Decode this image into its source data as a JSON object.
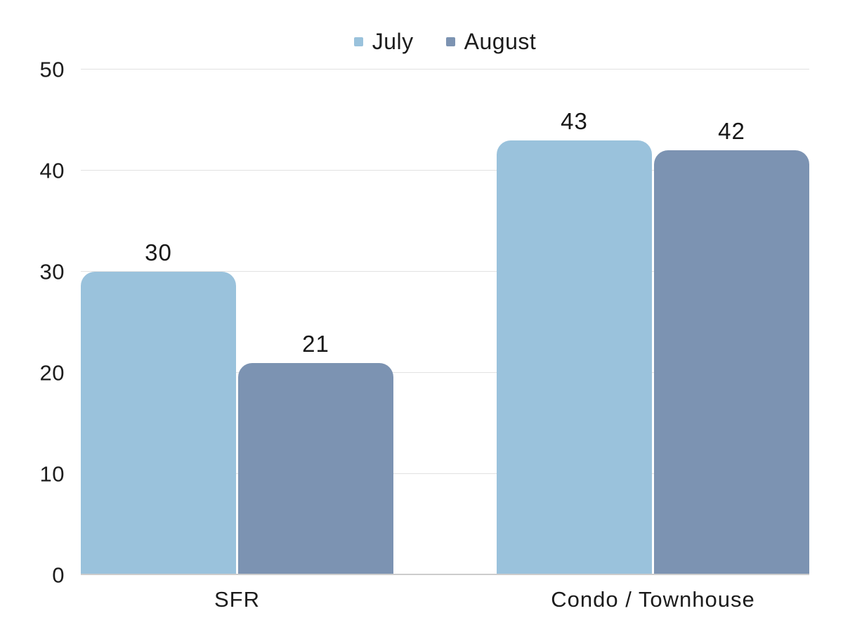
{
  "chart_data": {
    "type": "bar",
    "title": "",
    "categories": [
      "SFR",
      "Condo / Townhouse"
    ],
    "series": [
      {
        "name": "July",
        "color": "#9ac2dc",
        "values": [
          30,
          43
        ]
      },
      {
        "name": "August",
        "color": "#7c93b2",
        "values": [
          21,
          42
        ]
      }
    ],
    "ylim": [
      0,
      50
    ],
    "yticks": [
      0,
      10,
      20,
      30,
      40,
      50
    ],
    "grid": true,
    "legend_position": "top",
    "value_labels": true,
    "colors": {
      "gridline": "#e2e2e2",
      "baseline": "#cccccc",
      "text": "#1c1c1c",
      "background": "#ffffff"
    }
  }
}
